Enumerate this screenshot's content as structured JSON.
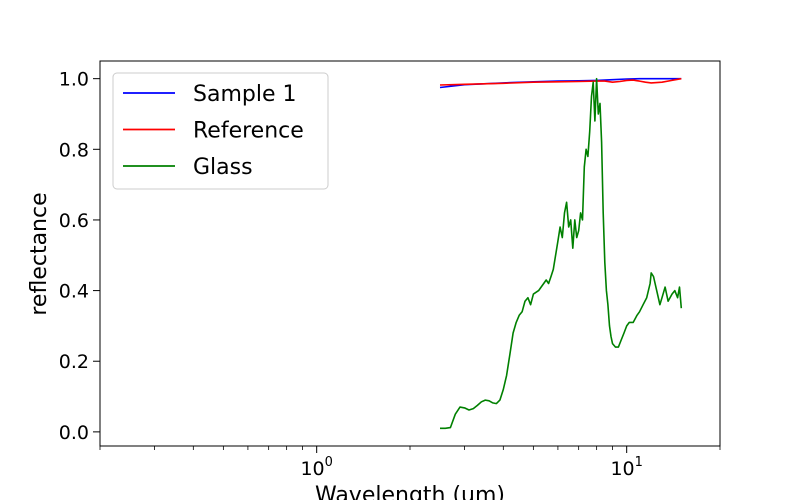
{
  "chart_data": {
    "type": "line",
    "title": "",
    "xlabel": "Wavelength (um)",
    "ylabel": "reflectance",
    "xscale": "log",
    "xlim": [
      0.2,
      20
    ],
    "ylim": [
      -0.04,
      1.05
    ],
    "x_major_ticks": [
      {
        "value": 1,
        "base": "10",
        "exp": "0"
      },
      {
        "value": 10,
        "base": "10",
        "exp": "1"
      }
    ],
    "x_minor_ticks": [
      0.2,
      0.3,
      0.4,
      0.5,
      0.6,
      0.7,
      0.8,
      0.9,
      2,
      3,
      4,
      5,
      6,
      7,
      8,
      9,
      20
    ],
    "y_ticks": [
      {
        "value": 0.0,
        "label": "0.0"
      },
      {
        "value": 0.2,
        "label": "0.2"
      },
      {
        "value": 0.4,
        "label": "0.4"
      },
      {
        "value": 0.6,
        "label": "0.6"
      },
      {
        "value": 0.8,
        "label": "0.8"
      },
      {
        "value": 1.0,
        "label": "1.0"
      }
    ],
    "grid": false,
    "legend_position": "top-left",
    "series": [
      {
        "name": "Sample 1",
        "color": "#0000ff",
        "x": [
          2.5,
          3,
          4,
          5,
          6,
          7,
          8,
          9,
          10,
          11,
          12,
          13,
          14,
          15
        ],
        "y": [
          0.975,
          0.983,
          0.988,
          0.991,
          0.993,
          0.994,
          0.995,
          0.997,
          0.999,
          1.0,
          1.0,
          1.0,
          1.0,
          1.0
        ]
      },
      {
        "name": "Reference",
        "color": "#ff0000",
        "x": [
          2.5,
          3,
          4,
          5,
          6,
          7,
          8,
          8.5,
          9,
          9.5,
          10,
          10.5,
          11,
          11.5,
          12,
          13,
          14,
          15
        ],
        "y": [
          0.982,
          0.984,
          0.987,
          0.99,
          0.991,
          0.992,
          0.993,
          0.993,
          0.99,
          0.992,
          0.995,
          0.996,
          0.993,
          0.99,
          0.988,
          0.99,
          0.995,
          1.0
        ]
      },
      {
        "name": "Glass",
        "color": "#008000",
        "x": [
          2.5,
          2.6,
          2.7,
          2.8,
          2.9,
          3.0,
          3.1,
          3.2,
          3.3,
          3.4,
          3.5,
          3.6,
          3.7,
          3.8,
          3.9,
          4.0,
          4.1,
          4.2,
          4.3,
          4.4,
          4.5,
          4.6,
          4.7,
          4.8,
          4.9,
          5.0,
          5.2,
          5.4,
          5.5,
          5.6,
          5.7,
          5.8,
          5.9,
          6.0,
          6.1,
          6.2,
          6.3,
          6.4,
          6.5,
          6.6,
          6.7,
          6.8,
          6.9,
          7.0,
          7.1,
          7.2,
          7.3,
          7.4,
          7.5,
          7.6,
          7.7,
          7.8,
          7.9,
          8.0,
          8.1,
          8.2,
          8.3,
          8.4,
          8.5,
          8.6,
          8.7,
          8.8,
          8.9,
          9.0,
          9.2,
          9.4,
          9.6,
          9.8,
          10.0,
          10.2,
          10.5,
          10.8,
          11.0,
          11.3,
          11.6,
          11.9,
          12.0,
          12.2,
          12.5,
          12.8,
          13.0,
          13.3,
          13.6,
          14.0,
          14.3,
          14.6,
          14.8,
          15.0
        ],
        "y": [
          0.01,
          0.01,
          0.012,
          0.05,
          0.07,
          0.068,
          0.062,
          0.066,
          0.075,
          0.085,
          0.09,
          0.088,
          0.082,
          0.08,
          0.09,
          0.12,
          0.16,
          0.22,
          0.28,
          0.31,
          0.33,
          0.34,
          0.37,
          0.38,
          0.36,
          0.39,
          0.4,
          0.42,
          0.43,
          0.42,
          0.44,
          0.46,
          0.5,
          0.54,
          0.58,
          0.55,
          0.62,
          0.65,
          0.58,
          0.6,
          0.52,
          0.6,
          0.55,
          0.57,
          0.62,
          0.6,
          0.75,
          0.8,
          0.78,
          0.85,
          0.95,
          0.99,
          0.88,
          1.0,
          0.9,
          0.93,
          0.82,
          0.62,
          0.48,
          0.4,
          0.36,
          0.3,
          0.27,
          0.25,
          0.24,
          0.24,
          0.26,
          0.28,
          0.3,
          0.31,
          0.31,
          0.33,
          0.34,
          0.36,
          0.38,
          0.42,
          0.45,
          0.44,
          0.4,
          0.36,
          0.38,
          0.41,
          0.37,
          0.39,
          0.4,
          0.38,
          0.41,
          0.35
        ]
      }
    ]
  }
}
